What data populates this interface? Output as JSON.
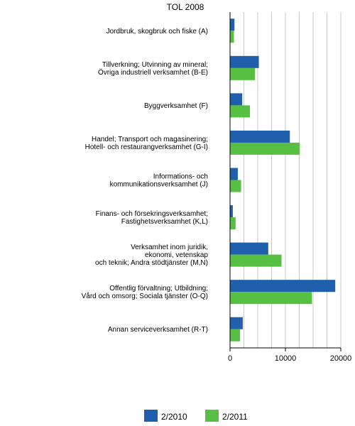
{
  "chart_data": {
    "type": "bar",
    "orientation": "horizontal",
    "title": "",
    "heading": "TOL 2008",
    "xlabel": "",
    "ylabel": "",
    "xlim": [
      0,
      20000
    ],
    "ticks": [
      0,
      10000,
      20000
    ],
    "tick_labels": [
      "0",
      "10000",
      "20000"
    ],
    "grid": "vertical",
    "legend_position": "bottom",
    "categories": [
      [
        "Jordbruk, skogbruk och fiske (A)"
      ],
      [
        "Tillverkning; Utvinning av mineral;",
        "Övriga industriell verksamhet (B-E)"
      ],
      [
        "Byggverksamhet (F)"
      ],
      [
        "Handel; Transport och magasinering;",
        "Hotell- och restaurangverksamhet (G-I)"
      ],
      [
        "Informations- och",
        "kommunikationsverksamhet (J)"
      ],
      [
        "Finans- och försekringsverksamhet;",
        "Fastighetsverksamhet (K,L)"
      ],
      [
        "Verksamhet inom juridik,",
        "ekonomi, vetenskap",
        "och teknik; Andra stödtjänster (M,N)"
      ],
      [
        "Offentlig förvaltning; Utbildning;",
        "Vård och omsorg; Sociala tjänster (O-Q)"
      ],
      [
        "Annan serviceverksamhet (R-T)"
      ]
    ],
    "series": [
      {
        "name": "2/2010",
        "color": "#1f5fac",
        "values": [
          800,
          5200,
          2200,
          10800,
          1400,
          500,
          6900,
          19000,
          2300
        ]
      },
      {
        "name": "2/2011",
        "color": "#57c043",
        "values": [
          700,
          4500,
          3600,
          12600,
          2000,
          1000,
          9300,
          14800,
          1800
        ]
      }
    ]
  }
}
